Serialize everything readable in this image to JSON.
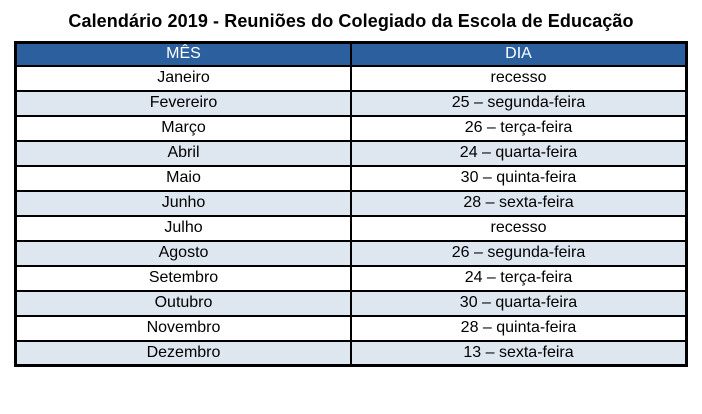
{
  "title": "Calendário 2019 - Reuniões do Colegiado da Escola de Educação",
  "table": {
    "headers": [
      "MÊS",
      "DIA"
    ],
    "rows": [
      {
        "mes": "Janeiro",
        "dia": "recesso"
      },
      {
        "mes": "Fevereiro",
        "dia": "25 – segunda-feira"
      },
      {
        "mes": "Março",
        "dia": "26 – terça-feira"
      },
      {
        "mes": "Abril",
        "dia": "24 – quarta-feira"
      },
      {
        "mes": "Maio",
        "dia": "30 – quinta-feira"
      },
      {
        "mes": "Junho",
        "dia": "28 – sexta-feira"
      },
      {
        "mes": "Julho",
        "dia": "recesso"
      },
      {
        "mes": "Agosto",
        "dia": "26 – segunda-feira"
      },
      {
        "mes": "Setembro",
        "dia": "24 – terça-feira"
      },
      {
        "mes": "Outubro",
        "dia": "30 – quarta-feira"
      },
      {
        "mes": "Novembro",
        "dia": "28 – quinta-feira"
      },
      {
        "mes": "Dezembro",
        "dia": "13 – sexta-feira"
      }
    ]
  },
  "colors": {
    "header_bg": "#2B5F9E",
    "header_text": "#FFFFFF",
    "alt_row_bg": "#DEE6F0",
    "row_bg": "#FFFFFF",
    "border": "#000000",
    "text": "#000000"
  }
}
